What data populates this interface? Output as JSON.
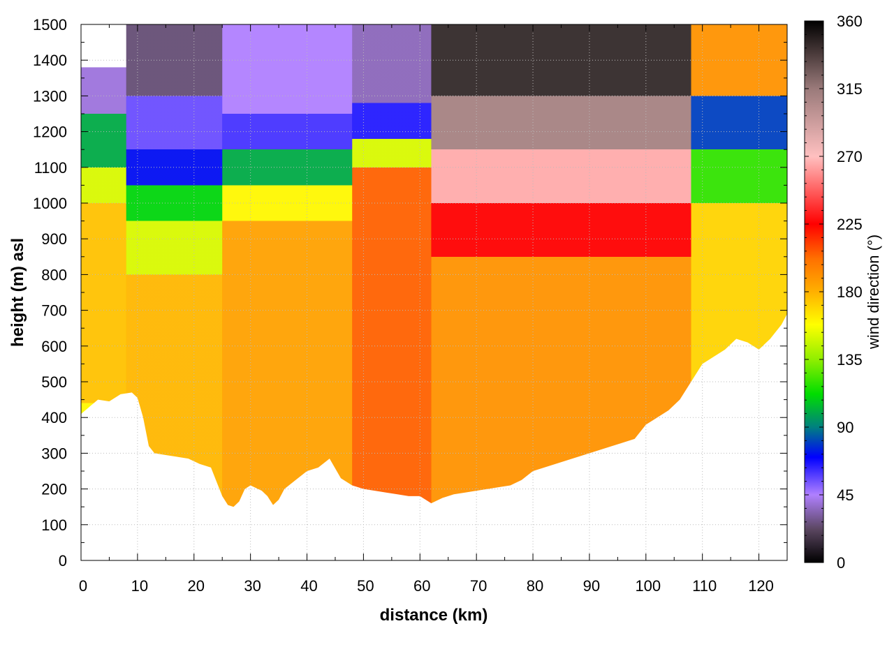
{
  "chart_data": {
    "type": "heatmap",
    "title": "",
    "xlabel": "distance (km)",
    "ylabel": "height (m) asl",
    "xlim": [
      0,
      125
    ],
    "ylim": [
      0,
      1500
    ],
    "x_ticks": [
      "0",
      "10",
      "20",
      "30",
      "40",
      "50",
      "60",
      "70",
      "80",
      "90",
      "100",
      "110",
      "120"
    ],
    "y_ticks": [
      "0",
      "100",
      "200",
      "300",
      "400",
      "500",
      "600",
      "700",
      "800",
      "900",
      "1000",
      "1100",
      "1200",
      "1300",
      "1400",
      "1500"
    ],
    "grid": "dotted",
    "colorbar": {
      "label": "wind direction (°)",
      "range": [
        0,
        360
      ],
      "ticks": [
        "0",
        "45",
        "90",
        "135",
        "180",
        "225",
        "270",
        "315",
        "360"
      ],
      "stops": [
        {
          "value": 0,
          "color": "#000000"
        },
        {
          "value": 22,
          "color": "#5a4660"
        },
        {
          "value": 45,
          "color": "#b080ff"
        },
        {
          "value": 70,
          "color": "#0000ff"
        },
        {
          "value": 90,
          "color": "#008080"
        },
        {
          "value": 112,
          "color": "#00dd00"
        },
        {
          "value": 135,
          "color": "#90ee00"
        },
        {
          "value": 158,
          "color": "#ffff00"
        },
        {
          "value": 180,
          "color": "#ffb000"
        },
        {
          "value": 202,
          "color": "#ff7000"
        },
        {
          "value": 225,
          "color": "#ff0000"
        },
        {
          "value": 270,
          "color": "#ffc0c0"
        },
        {
          "value": 315,
          "color": "#9a7a7a"
        },
        {
          "value": 360,
          "color": "#000000"
        }
      ]
    },
    "terrain": {
      "x": [
        0,
        3,
        5,
        7,
        9,
        10,
        11,
        12,
        13,
        15,
        17,
        19,
        21,
        23,
        24,
        25,
        26,
        27,
        28,
        29,
        30,
        32,
        33,
        34,
        35,
        36,
        38,
        40,
        42,
        44,
        46,
        48,
        50,
        52,
        54,
        56,
        58,
        60,
        62,
        64,
        66,
        68,
        70,
        72,
        74,
        76,
        78,
        80,
        82,
        86,
        90,
        94,
        98,
        100,
        102,
        104,
        106,
        108,
        110,
        112,
        114,
        116,
        118,
        119,
        120,
        122,
        124,
        125
      ],
      "height": [
        410,
        450,
        445,
        465,
        470,
        455,
        400,
        320,
        300,
        295,
        290,
        285,
        270,
        260,
        220,
        180,
        155,
        150,
        165,
        200,
        210,
        195,
        180,
        155,
        170,
        200,
        225,
        250,
        260,
        285,
        230,
        210,
        200,
        195,
        190,
        185,
        180,
        180,
        160,
        175,
        185,
        190,
        195,
        200,
        205,
        210,
        225,
        250,
        260,
        280,
        300,
        320,
        340,
        380,
        400,
        420,
        450,
        500,
        550,
        570,
        590,
        620,
        610,
        600,
        590,
        620,
        660,
        690
      ]
    },
    "field_bands": [
      {
        "x": [
          0,
          8
        ],
        "top": 1380,
        "layers": [
          {
            "ymax": 440,
            "value": 160
          },
          {
            "ymax": 1000,
            "value": 175
          },
          {
            "ymax": 1100,
            "value": 150
          },
          {
            "ymax": 1250,
            "value": 100
          },
          {
            "ymax": 1500,
            "value": 40
          }
        ]
      },
      {
        "x": [
          8,
          25
        ],
        "layers": [
          {
            "ymax": 800,
            "value": 178
          },
          {
            "ymax": 950,
            "value": 150
          },
          {
            "ymax": 1050,
            "value": 110
          },
          {
            "ymax": 1150,
            "value": 72
          },
          {
            "ymax": 1300,
            "value": 55
          },
          {
            "ymax": 1500,
            "value": 25
          }
        ]
      },
      {
        "x": [
          25,
          48
        ],
        "layers": [
          {
            "ymax": 950,
            "value": 185
          },
          {
            "ymax": 1050,
            "value": 160
          },
          {
            "ymax": 1150,
            "value": 100
          },
          {
            "ymax": 1250,
            "value": 60
          },
          {
            "ymax": 1500,
            "value": 45
          }
        ]
      },
      {
        "x": [
          48,
          62
        ],
        "layers": [
          {
            "ymax": 1100,
            "value": 205
          },
          {
            "ymax": 1180,
            "value": 150
          },
          {
            "ymax": 1280,
            "value": 65
          },
          {
            "ymax": 1500,
            "value": 35
          }
        ]
      },
      {
        "x": [
          62,
          108
        ],
        "layers": [
          {
            "ymax": 850,
            "value": 190
          },
          {
            "ymax": 1000,
            "value": 225
          },
          {
            "ymax": 1150,
            "value": 265
          },
          {
            "ymax": 1300,
            "value": 310
          },
          {
            "ymax": 1500,
            "value": 345
          }
        ]
      },
      {
        "x": [
          108,
          125
        ],
        "layers": [
          {
            "ymax": 1000,
            "value": 170
          },
          {
            "ymax": 1150,
            "value": 120
          },
          {
            "ymax": 1300,
            "value": 80
          },
          {
            "ymax": 1500,
            "value": 190
          }
        ]
      }
    ]
  }
}
